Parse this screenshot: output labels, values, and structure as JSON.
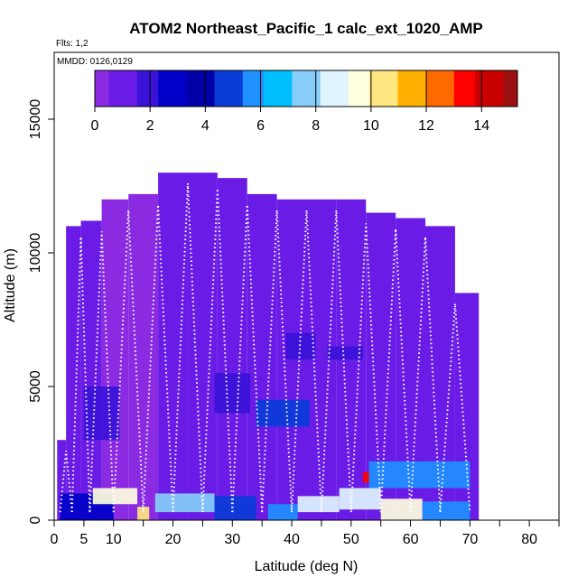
{
  "chart_data": {
    "type": "heatmap",
    "title": "ATOM2 Northeast_Pacific_1 calc_ext_1020_AMP",
    "flights_label": "Flts: 1,2",
    "dates_label": "MMDD: 0126,0129",
    "xlabel": "Latitude (deg N)",
    "ylabel": "Altitude (m)",
    "xlim": [
      0,
      85
    ],
    "ylim": [
      0,
      17500
    ],
    "x_ticks": [
      0,
      5,
      10,
      20,
      30,
      40,
      50,
      60,
      70,
      80
    ],
    "x_minor_ticks": [
      15,
      25,
      35,
      45,
      55,
      65,
      75,
      85
    ],
    "y_ticks": [
      0,
      5000,
      10000,
      15000
    ],
    "colorbar": {
      "range": [
        0,
        15.3
      ],
      "ticks": [
        0,
        2,
        4,
        6,
        8,
        10,
        12,
        14
      ],
      "colors": [
        "#8a2be2",
        "#6a1ce6",
        "#3a12d8",
        "#0000c8",
        "#0000a8",
        "#0a3cd8",
        "#1e90ff",
        "#00bfff",
        "#87cefa",
        "#e0f4ff",
        "#ffffe0",
        "#ffe680",
        "#ffb000",
        "#ff6a00",
        "#ff0000",
        "#c80000",
        "#9a1010"
      ]
    },
    "field": {
      "description": "Aerosol extinction coefficient (1020 nm) curtain",
      "lat_extent": [
        0.5,
        71.5
      ],
      "alt_extent": [
        0,
        13000
      ],
      "profiles": [
        {
          "lat": 1,
          "top": 3000,
          "value": 1.0
        },
        {
          "lat": 3,
          "top": 11000,
          "value": 0.6
        },
        {
          "lat": 6,
          "top": 11200,
          "value": 0.5
        },
        {
          "lat": 10,
          "top": 12000,
          "value": 0.4
        },
        {
          "lat": 15,
          "top": 12200,
          "value": 0.4
        },
        {
          "lat": 20,
          "top": 13000,
          "value": 0.5
        },
        {
          "lat": 25,
          "top": 13000,
          "value": 0.6
        },
        {
          "lat": 30,
          "top": 12800,
          "value": 0.5
        },
        {
          "lat": 35,
          "top": 12200,
          "value": 0.6
        },
        {
          "lat": 40,
          "top": 12000,
          "value": 0.7
        },
        {
          "lat": 45,
          "top": 12000,
          "value": 0.7
        },
        {
          "lat": 50,
          "top": 12000,
          "value": 0.8
        },
        {
          "lat": 55,
          "top": 11500,
          "value": 0.8
        },
        {
          "lat": 60,
          "top": 11300,
          "value": 0.7
        },
        {
          "lat": 65,
          "top": 11000,
          "value": 0.6
        },
        {
          "lat": 70,
          "top": 8500,
          "value": 1.0
        }
      ],
      "features": [
        {
          "lat": [
            1,
            10
          ],
          "alt": [
            0,
            1000
          ],
          "value": 3.0
        },
        {
          "lat": [
            6.5,
            14
          ],
          "alt": [
            600,
            1200
          ],
          "value": 9.5
        },
        {
          "lat": [
            14,
            16
          ],
          "alt": [
            0,
            500
          ],
          "value": 10.5
        },
        {
          "lat": [
            17,
            27
          ],
          "alt": [
            300,
            1000
          ],
          "value": 7.5
        },
        {
          "lat": [
            27,
            34
          ],
          "alt": [
            0,
            900
          ],
          "value": 5.0
        },
        {
          "lat": [
            36,
            41
          ],
          "alt": [
            0,
            600
          ],
          "value": 6.0
        },
        {
          "lat": [
            41,
            48
          ],
          "alt": [
            300,
            900
          ],
          "value": 8.5
        },
        {
          "lat": [
            48,
            55
          ],
          "alt": [
            400,
            1200
          ],
          "value": 8.8
        },
        {
          "lat": [
            55,
            62
          ],
          "alt": [
            0,
            800
          ],
          "value": 10.0
        },
        {
          "lat": [
            62,
            70
          ],
          "alt": [
            0,
            700
          ],
          "value": 5.5
        },
        {
          "lat": [
            53,
            70
          ],
          "alt": [
            1200,
            2200
          ],
          "value": 6.0
        },
        {
          "lat": [
            34,
            43
          ],
          "alt": [
            3500,
            4500
          ],
          "value": 4.8
        },
        {
          "lat": [
            27,
            33
          ],
          "alt": [
            4000,
            5500
          ],
          "value": 2.2
        },
        {
          "lat": [
            5,
            11
          ],
          "alt": [
            3000,
            5000
          ],
          "value": 2.0
        },
        {
          "lat": [
            39,
            44
          ],
          "alt": [
            6000,
            7000
          ],
          "value": 1.8
        },
        {
          "lat": [
            46,
            52
          ],
          "alt": [
            6000,
            6500
          ],
          "value": 1.8
        },
        {
          "lat": [
            52,
            53
          ],
          "alt": [
            1400,
            1800
          ],
          "value": 13.5
        }
      ]
    },
    "flight_tracks": "white dotted vertical profile tracks across the curtain"
  }
}
